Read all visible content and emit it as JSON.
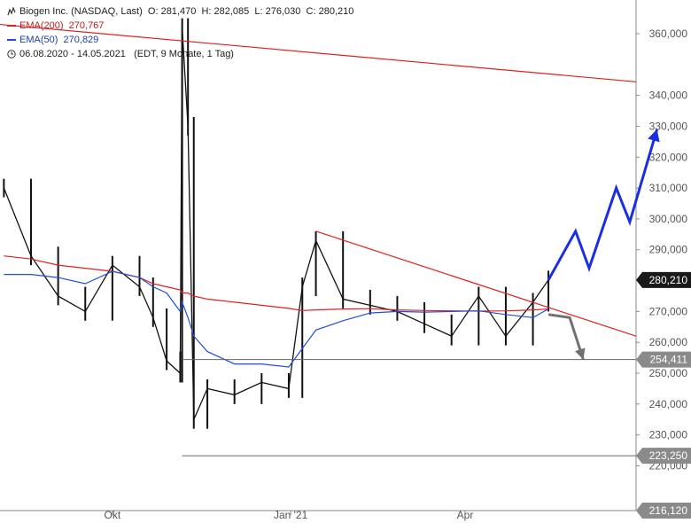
{
  "header": {
    "instrument": "Biogen Inc. (NASDAQ, Last)",
    "open": "O: 281,470",
    "high": "H: 282,085",
    "low": "L: 276,030",
    "close": "C: 280,210",
    "ema200_label": "EMA(200)",
    "ema200_value": "270,767",
    "ema50_label": "EMA(50)",
    "ema50_value": "270,829",
    "period": "06.08.2020 - 14.05.2021",
    "period_info": "(EDT, 9 Monate, 1 Tag)"
  },
  "colors": {
    "ema200": "#e02020",
    "ema50": "#1f4fd8",
    "price": "#111111",
    "support": "#555555",
    "forecast_up": "#1a2fe0",
    "forecast_down": "#707070",
    "trendline": "#e02020"
  },
  "chart_data": {
    "type": "line",
    "title": "Biogen Inc. (NASDAQ, Last)",
    "xlabel": "",
    "ylabel": "",
    "x_ticks": [
      "Okt",
      "Jan '21",
      "Apr"
    ],
    "y_ticks": [
      220000,
      230000,
      240000,
      250000,
      260000,
      270000,
      280000,
      290000,
      300000,
      310000,
      320000,
      330000,
      340000,
      360000
    ],
    "y_tick_labels": [
      "220,000",
      "230,000",
      "240,000",
      "250,000",
      "260,000",
      "270,000",
      "280,000",
      "290,000",
      "300,000",
      "310,000",
      "320,000",
      "330,000",
      "340,000",
      "360,000"
    ],
    "ylim": [
      216000,
      368000
    ],
    "price_markers": [
      {
        "label": "280,210",
        "value": 280210,
        "style": "dark"
      },
      {
        "label": "254,411",
        "value": 254411,
        "style": "gray"
      },
      {
        "label": "223,250",
        "value": 223250,
        "style": "gray"
      },
      {
        "label": "216,120",
        "value": 216120,
        "style": "gray"
      }
    ],
    "x": [
      "2020-08-06",
      "2020-08-20",
      "2020-09-03",
      "2020-09-17",
      "2020-10-01",
      "2020-10-15",
      "2020-10-22",
      "2020-10-29",
      "2020-11-05",
      "2020-11-06",
      "2020-11-09",
      "2020-11-12",
      "2020-11-19",
      "2020-12-03",
      "2020-12-17",
      "2020-12-31",
      "2021-01-07",
      "2021-01-14",
      "2021-01-28",
      "2021-02-11",
      "2021-02-25",
      "2021-03-11",
      "2021-03-25",
      "2021-04-08",
      "2021-04-22",
      "2021-05-06",
      "2021-05-14"
    ],
    "series": [
      {
        "key": "price",
        "values": [
          310000,
          288000,
          275000,
          270000,
          285000,
          278000,
          268000,
          254000,
          250000,
          362000,
          330000,
          235000,
          245000,
          243000,
          247000,
          245000,
          278000,
          293000,
          274000,
          272000,
          270000,
          266000,
          262000,
          275000,
          262000,
          273000,
          280210
        ]
      },
      {
        "key": "ema200",
        "name": "EMA(200)",
        "values": [
          288000,
          287000,
          285000,
          284000,
          283000,
          281000,
          279000,
          278000,
          277000,
          276000,
          276000,
          275000,
          274000,
          273000,
          272000,
          271000,
          270300,
          270500,
          270800,
          270900,
          270500,
          270300,
          270200,
          270100,
          270200,
          270500,
          270767
        ]
      },
      {
        "key": "ema50",
        "name": "EMA(50)",
        "values": [
          282000,
          282000,
          281000,
          279000,
          283000,
          281000,
          278000,
          276000,
          270000,
          273000,
          268000,
          262000,
          257000,
          253000,
          253000,
          252000,
          258000,
          264000,
          267000,
          269500,
          270000,
          269800,
          270000,
          270200,
          269000,
          268000,
          270829
        ]
      }
    ],
    "annotations": {
      "downtrend_resistance": {
        "from": [
          "2020-08-06",
          363000
        ],
        "to": [
          "2021-05-14",
          349000
        ]
      },
      "falling_trendline": {
        "from": [
          "2021-01-14",
          296000
        ],
        "to": [
          "2021-05-14",
          262000
        ]
      },
      "support_level": 254411,
      "low_level": 223250,
      "forecast_up": [
        [
          "2021-05-14",
          280210
        ],
        [
          "2021-05-28",
          296000
        ],
        [
          "2021-06-04",
          284000
        ],
        [
          "2021-06-18",
          310000
        ],
        [
          "2021-06-25",
          299000
        ],
        [
          "2021-07-09",
          329000
        ]
      ],
      "forecast_down": [
        [
          "2021-05-14",
          269000
        ],
        [
          "2021-05-25",
          268000
        ],
        [
          "2021-06-01",
          254411
        ]
      ]
    }
  }
}
